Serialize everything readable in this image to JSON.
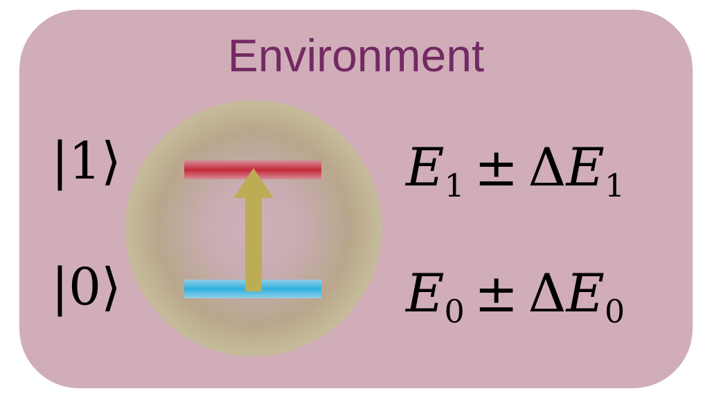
{
  "title": "Environment",
  "states": {
    "excited": {
      "ket_label": "1",
      "energy_symbol": "E",
      "energy_index": "1",
      "pm": "±",
      "delta": "Δ"
    },
    "ground": {
      "ket_label": "0",
      "energy_symbol": "E",
      "energy_index": "0",
      "pm": "±",
      "delta": "Δ"
    }
  },
  "colors": {
    "panel": "#d0adb8",
    "title": "#722a62",
    "halo": "#b5a47f",
    "excited_level": "#c42a3a",
    "ground_level": "#2fb0df",
    "arrow": "#bcad55"
  }
}
